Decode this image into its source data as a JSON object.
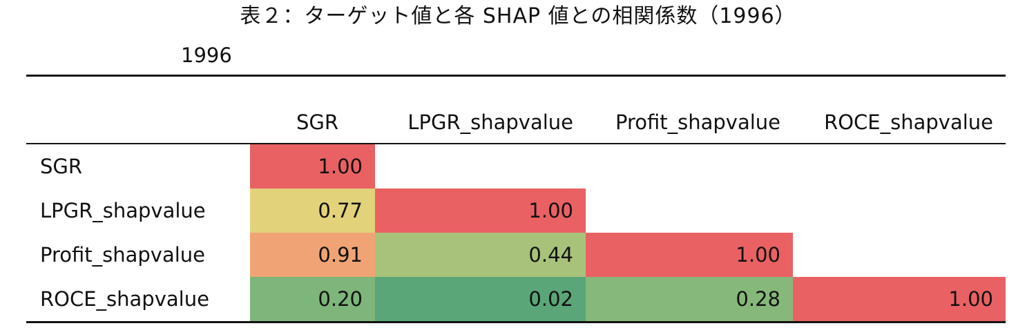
{
  "title": "表２：ターゲット値と各 SHAP 値との相関係数（1996）",
  "year_label": "1996",
  "columns": [
    "SGR",
    "LPGR_shapvalue",
    "Profit_shapvalue",
    "ROCE_shapvalue"
  ],
  "rows": [
    {
      "label": "SGR",
      "values": [
        "1.00",
        "",
        "",
        ""
      ]
    },
    {
      "label": "LPGR_shapvalue",
      "values": [
        "0.77",
        "1.00",
        "",
        ""
      ]
    },
    {
      "label": "Profit_shapvalue",
      "values": [
        "0.91",
        "0.44",
        "1.00",
        ""
      ]
    },
    {
      "label": "ROCE_shapvalue",
      "values": [
        "0.20",
        "0.02",
        "0.28",
        "1.00"
      ]
    }
  ],
  "cell_colors": [
    [
      "#e96163",
      "",
      "",
      ""
    ],
    [
      "#e2d27a",
      "#e96163",
      "",
      ""
    ],
    [
      "#f0a475",
      "#a8c27a",
      "#e96163",
      ""
    ],
    [
      "#7db57a",
      "#5aa678",
      "#86b87a",
      "#e96163"
    ]
  ],
  "chart_data": {
    "type": "heatmap",
    "title": "表２：ターゲット値と各 SHAP 値との相関係数（1996）",
    "x": [
      "SGR",
      "LPGR_shapvalue",
      "Profit_shapvalue",
      "ROCE_shapvalue"
    ],
    "y": [
      "SGR",
      "LPGR_shapvalue",
      "Profit_shapvalue",
      "ROCE_shapvalue"
    ],
    "values": [
      [
        1.0,
        null,
        null,
        null
      ],
      [
        0.77,
        1.0,
        null,
        null
      ],
      [
        0.91,
        0.44,
        1.0,
        null
      ],
      [
        0.2,
        0.02,
        0.28,
        1.0
      ]
    ]
  }
}
